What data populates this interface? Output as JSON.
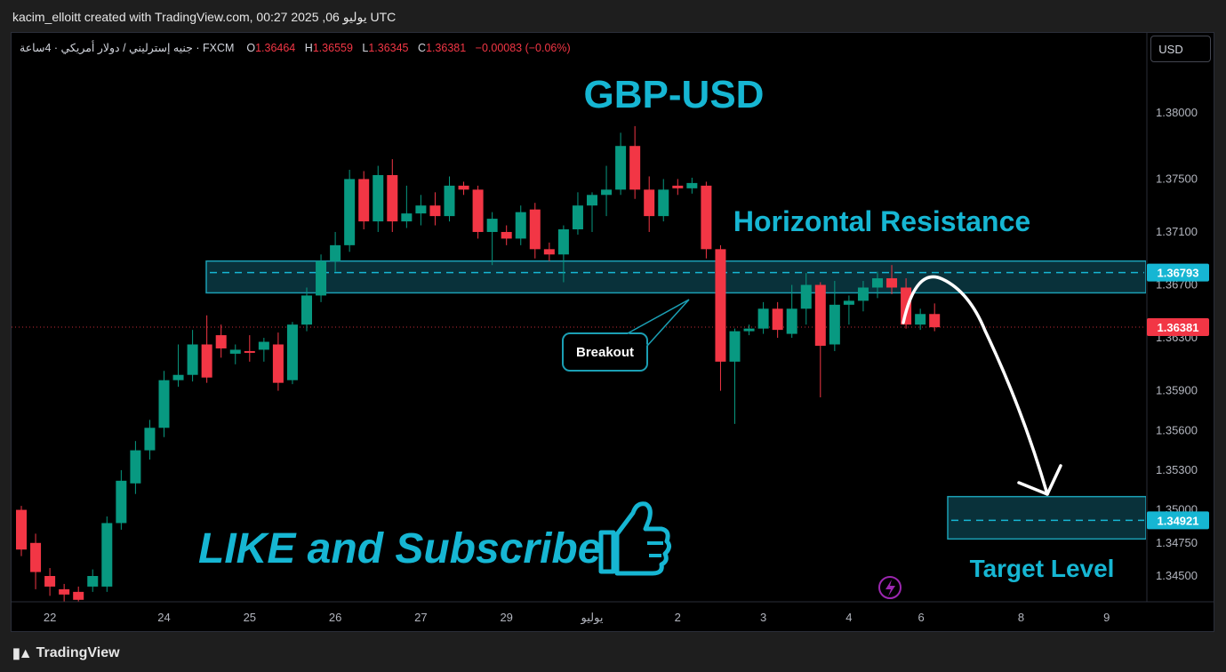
{
  "header": {
    "credit": "kacim_elloitt created with TradingView.com, 00:27 2025 ,06 يوليو UTC"
  },
  "legend": {
    "symbol": "جنيه إسترليني / دولار أمريكي · 4ساعة · FXCM",
    "o_label": "O",
    "o_value": "1.36464",
    "h_label": "H",
    "h_value": "1.36559",
    "l_label": "L",
    "l_value": "1.36345",
    "c_label": "C",
    "c_value": "1.36381",
    "change": "−0.00083 (−0.06%)"
  },
  "currency_button": "USD",
  "footer": {
    "brand": "TradingView"
  },
  "colors": {
    "up": "#089981",
    "down": "#f23645",
    "accent": "#16b6d3",
    "zone_fill": "#0b3a44",
    "zone_border": "#1b9fb4"
  },
  "chart_data": {
    "type": "candlestick",
    "title": "GBP-USD",
    "yaxis": {
      "ticks": [
        "1.38000",
        "1.37500",
        "1.37100",
        "1.36700",
        "1.36300",
        "1.35900",
        "1.35600",
        "1.35300",
        "1.35000",
        "1.34750",
        "1.34500"
      ],
      "ylim": [
        1.3442,
        1.3832
      ]
    },
    "xaxis": {
      "ticks": [
        {
          "label": "22",
          "index": 2
        },
        {
          "label": "24",
          "index": 10
        },
        {
          "label": "25",
          "index": 16
        },
        {
          "label": "26",
          "index": 22
        },
        {
          "label": "27",
          "index": 28
        },
        {
          "label": "29",
          "index": 34
        },
        {
          "label": "يوليو",
          "index": 40
        },
        {
          "label": "2",
          "index": 46
        },
        {
          "label": "3",
          "index": 52
        },
        {
          "label": "4",
          "index": 58
        },
        {
          "label": "6",
          "index": 63
        },
        {
          "label": "8",
          "index": 70
        },
        {
          "label": "9",
          "index": 76
        }
      ]
    },
    "price_labels": [
      {
        "value": 1.36793,
        "text": "1.36793",
        "color": "#16b6d3"
      },
      {
        "value": 1.36381,
        "text": "1.36381",
        "color": "#f23645"
      },
      {
        "value": 1.34921,
        "text": "1.34921",
        "color": "#16b6d3"
      }
    ],
    "candles": [
      {
        "o": 1.35,
        "h": 1.3503,
        "l": 1.3465,
        "c": 1.347
      },
      {
        "o": 1.3475,
        "h": 1.3482,
        "l": 1.344,
        "c": 1.3453
      },
      {
        "o": 1.345,
        "h": 1.3456,
        "l": 1.3435,
        "c": 1.3442
      },
      {
        "o": 1.344,
        "h": 1.3444,
        "l": 1.343,
        "c": 1.3436
      },
      {
        "o": 1.3438,
        "h": 1.3442,
        "l": 1.3428,
        "c": 1.3432
      },
      {
        "o": 1.3442,
        "h": 1.3455,
        "l": 1.3438,
        "c": 1.345
      },
      {
        "o": 1.3442,
        "h": 1.3495,
        "l": 1.3438,
        "c": 1.349
      },
      {
        "o": 1.349,
        "h": 1.353,
        "l": 1.3485,
        "c": 1.3522
      },
      {
        "o": 1.352,
        "h": 1.3552,
        "l": 1.3512,
        "c": 1.3545
      },
      {
        "o": 1.3545,
        "h": 1.3568,
        "l": 1.3538,
        "c": 1.3562
      },
      {
        "o": 1.3562,
        "h": 1.3605,
        "l": 1.3555,
        "c": 1.3598
      },
      {
        "o": 1.3598,
        "h": 1.3625,
        "l": 1.3593,
        "c": 1.3602
      },
      {
        "o": 1.3602,
        "h": 1.3636,
        "l": 1.3597,
        "c": 1.3625
      },
      {
        "o": 1.3625,
        "h": 1.3647,
        "l": 1.3596,
        "c": 1.36
      },
      {
        "o": 1.3632,
        "h": 1.364,
        "l": 1.3615,
        "c": 1.3622
      },
      {
        "o": 1.3618,
        "h": 1.3625,
        "l": 1.361,
        "c": 1.3621
      },
      {
        "o": 1.362,
        "h": 1.3632,
        "l": 1.3612,
        "c": 1.3619
      },
      {
        "o": 1.3621,
        "h": 1.363,
        "l": 1.3612,
        "c": 1.3627
      },
      {
        "o": 1.3625,
        "h": 1.3634,
        "l": 1.359,
        "c": 1.3596
      },
      {
        "o": 1.3598,
        "h": 1.3642,
        "l": 1.3595,
        "c": 1.364
      },
      {
        "o": 1.364,
        "h": 1.3668,
        "l": 1.3635,
        "c": 1.3662
      },
      {
        "o": 1.3662,
        "h": 1.3693,
        "l": 1.3657,
        "c": 1.3688
      },
      {
        "o": 1.3688,
        "h": 1.371,
        "l": 1.368,
        "c": 1.37
      },
      {
        "o": 1.37,
        "h": 1.3757,
        "l": 1.3695,
        "c": 1.375
      },
      {
        "o": 1.375,
        "h": 1.3756,
        "l": 1.3712,
        "c": 1.3718
      },
      {
        "o": 1.3718,
        "h": 1.376,
        "l": 1.371,
        "c": 1.3753
      },
      {
        "o": 1.3753,
        "h": 1.3765,
        "l": 1.371,
        "c": 1.3718
      },
      {
        "o": 1.3718,
        "h": 1.3745,
        "l": 1.3713,
        "c": 1.3724
      },
      {
        "o": 1.3724,
        "h": 1.3738,
        "l": 1.3715,
        "c": 1.373
      },
      {
        "o": 1.373,
        "h": 1.374,
        "l": 1.3715,
        "c": 1.3722
      },
      {
        "o": 1.3722,
        "h": 1.3752,
        "l": 1.3718,
        "c": 1.3745
      },
      {
        "o": 1.3745,
        "h": 1.3748,
        "l": 1.3738,
        "c": 1.3742
      },
      {
        "o": 1.3742,
        "h": 1.3745,
        "l": 1.3705,
        "c": 1.371
      },
      {
        "o": 1.371,
        "h": 1.3725,
        "l": 1.3685,
        "c": 1.372
      },
      {
        "o": 1.371,
        "h": 1.3715,
        "l": 1.37,
        "c": 1.3705
      },
      {
        "o": 1.3705,
        "h": 1.373,
        "l": 1.37,
        "c": 1.3725
      },
      {
        "o": 1.3727,
        "h": 1.3732,
        "l": 1.369,
        "c": 1.3697
      },
      {
        "o": 1.3697,
        "h": 1.3702,
        "l": 1.3688,
        "c": 1.3693
      },
      {
        "o": 1.3693,
        "h": 1.3715,
        "l": 1.3672,
        "c": 1.3712
      },
      {
        "o": 1.3712,
        "h": 1.374,
        "l": 1.3708,
        "c": 1.373
      },
      {
        "o": 1.373,
        "h": 1.374,
        "l": 1.371,
        "c": 1.3738
      },
      {
        "o": 1.3738,
        "h": 1.376,
        "l": 1.3722,
        "c": 1.3742
      },
      {
        "o": 1.3742,
        "h": 1.3785,
        "l": 1.3738,
        "c": 1.3775
      },
      {
        "o": 1.3775,
        "h": 1.379,
        "l": 1.3735,
        "c": 1.3742
      },
      {
        "o": 1.3742,
        "h": 1.3752,
        "l": 1.371,
        "c": 1.3722
      },
      {
        "o": 1.3722,
        "h": 1.375,
        "l": 1.3718,
        "c": 1.3742
      },
      {
        "o": 1.3745,
        "h": 1.375,
        "l": 1.3738,
        "c": 1.3743
      },
      {
        "o": 1.3743,
        "h": 1.3751,
        "l": 1.3739,
        "c": 1.3747
      },
      {
        "o": 1.3745,
        "h": 1.3748,
        "l": 1.369,
        "c": 1.3697
      },
      {
        "o": 1.3697,
        "h": 1.37,
        "l": 1.359,
        "c": 1.3612
      },
      {
        "o": 1.3612,
        "h": 1.3637,
        "l": 1.3565,
        "c": 1.3635
      },
      {
        "o": 1.3635,
        "h": 1.364,
        "l": 1.3632,
        "c": 1.3637
      },
      {
        "o": 1.3637,
        "h": 1.3657,
        "l": 1.3633,
        "c": 1.3652
      },
      {
        "o": 1.3652,
        "h": 1.3657,
        "l": 1.363,
        "c": 1.3636
      },
      {
        "o": 1.3633,
        "h": 1.367,
        "l": 1.363,
        "c": 1.3652
      },
      {
        "o": 1.3652,
        "h": 1.3679,
        "l": 1.364,
        "c": 1.367
      },
      {
        "o": 1.367,
        "h": 1.3672,
        "l": 1.3585,
        "c": 1.3624
      },
      {
        "o": 1.3625,
        "h": 1.3673,
        "l": 1.362,
        "c": 1.3655
      },
      {
        "o": 1.3655,
        "h": 1.3662,
        "l": 1.364,
        "c": 1.3658
      },
      {
        "o": 1.3658,
        "h": 1.3673,
        "l": 1.365,
        "c": 1.3668
      },
      {
        "o": 1.3668,
        "h": 1.368,
        "l": 1.366,
        "c": 1.3675
      },
      {
        "o": 1.3675,
        "h": 1.3685,
        "l": 1.3663,
        "c": 1.3668
      },
      {
        "o": 1.3668,
        "h": 1.3675,
        "l": 1.3637,
        "c": 1.364
      },
      {
        "o": 1.364,
        "h": 1.3652,
        "l": 1.3636,
        "c": 1.3648
      },
      {
        "o": 1.3648,
        "h": 1.3656,
        "l": 1.3635,
        "c": 1.3638
      }
    ],
    "annotations": {
      "resistance_label": "Horizontal Resistance",
      "resistance_zone": [
        1.3664,
        1.3688
      ],
      "resistance_line": 1.36793,
      "breakout_label": "Breakout",
      "target_label": "Target Level",
      "target_zone": [
        1.3478,
        1.351
      ],
      "target_line": 1.34921,
      "promo_text": "LIKE and Subscribe"
    }
  }
}
